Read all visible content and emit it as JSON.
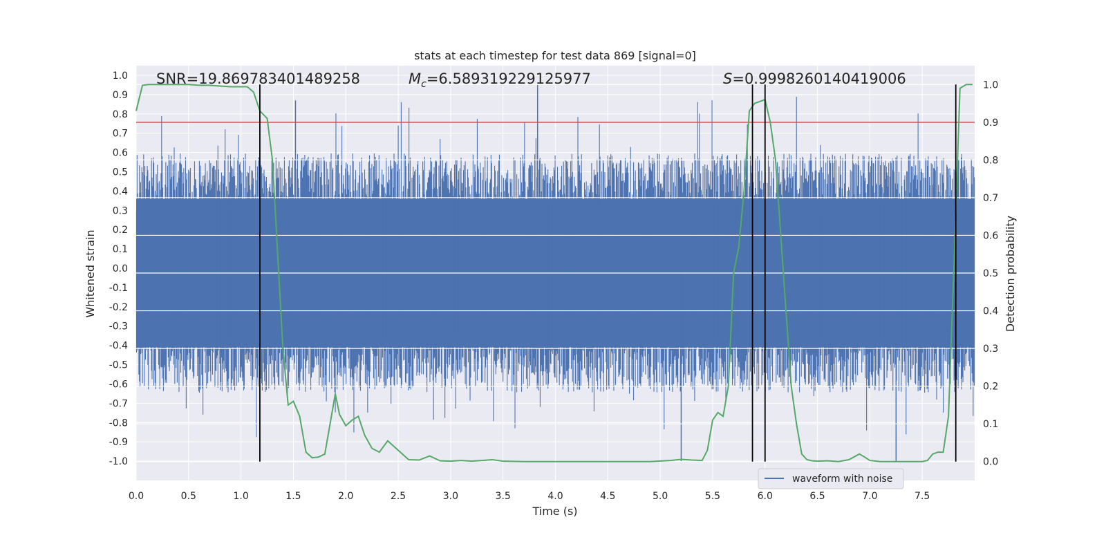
{
  "chart_data": {
    "type": "line",
    "title": "stats at each timestep for test data 869 [signal=0]",
    "xlabel": "Time (s)",
    "ylabel_left": "Whitened strain",
    "ylabel_right": "Detection probability",
    "xlim": [
      0.0,
      8.0
    ],
    "ylim_left": [
      -1.1,
      1.05
    ],
    "ylim_right": [
      -0.05,
      1.05
    ],
    "x_ticks": [
      "0.0",
      "0.5",
      "1.0",
      "1.5",
      "2.0",
      "2.5",
      "3.0",
      "3.5",
      "4.0",
      "4.5",
      "5.0",
      "5.5",
      "6.0",
      "6.5",
      "7.0",
      "7.5"
    ],
    "y_left_ticks": [
      "1.0",
      "0.9",
      "0.8",
      "0.7",
      "0.6",
      "0.5",
      "0.4",
      "0.3",
      "0.2",
      "0.1",
      "0.0",
      "-0.1",
      "-0.2",
      "-0.3",
      "-0.4",
      "-0.5",
      "-0.6",
      "-0.7",
      "-0.8",
      "-0.9",
      "-1.0"
    ],
    "y_right_ticks": [
      "1.0",
      "0.9",
      "0.8",
      "0.7",
      "0.6",
      "0.5",
      "0.4",
      "0.3",
      "0.2",
      "0.1",
      "0.0"
    ],
    "annotations": {
      "snr": "SNR=19.869783401489258",
      "mc_symbol": "M",
      "mc_sub": "c",
      "mc_value": "=6.589319229125977",
      "s_symbol": "S",
      "s_value": "=0.9998260140419006"
    },
    "threshold": {
      "value": 0.9,
      "color": "#c44e52"
    },
    "vertical_markers": [
      1.18,
      5.88,
      6.0,
      7.82
    ],
    "waveform": {
      "name": "waveform with noise",
      "color": "#4c72b0",
      "envelope_upper_typical": 0.4,
      "envelope_lower_typical": -0.45,
      "peak_max": 0.95,
      "peak_min": -1.0
    },
    "probability": {
      "color": "#55a868",
      "x": [
        0.0,
        0.06,
        0.12,
        0.2,
        0.3,
        0.4,
        0.5,
        0.6,
        0.7,
        0.8,
        0.9,
        1.0,
        1.06,
        1.12,
        1.18,
        1.25,
        1.3,
        1.35,
        1.4,
        1.45,
        1.5,
        1.56,
        1.62,
        1.68,
        1.74,
        1.8,
        1.9,
        1.94,
        2.0,
        2.06,
        2.12,
        2.18,
        2.25,
        2.32,
        2.4,
        2.5,
        2.6,
        2.7,
        2.8,
        2.9,
        3.0,
        3.1,
        3.2,
        3.3,
        3.4,
        3.5,
        3.7,
        4.0,
        4.3,
        4.6,
        4.9,
        5.1,
        5.2,
        5.3,
        5.4,
        5.45,
        5.5,
        5.55,
        5.6,
        5.65,
        5.7,
        5.75,
        5.8,
        5.85,
        5.9,
        5.95,
        6.0,
        6.05,
        6.1,
        6.15,
        6.2,
        6.25,
        6.3,
        6.35,
        6.4,
        6.45,
        6.5,
        6.6,
        6.7,
        6.8,
        6.9,
        6.95,
        7.0,
        7.1,
        7.2,
        7.3,
        7.4,
        7.5,
        7.55,
        7.6,
        7.65,
        7.7,
        7.75,
        7.8,
        7.86,
        7.92,
        7.98
      ],
      "values": [
        0.93,
        0.998,
        1.0,
        1.0,
        1.0,
        1.0,
        1.0,
        0.998,
        0.998,
        0.996,
        0.994,
        0.994,
        0.994,
        0.98,
        0.93,
        0.91,
        0.8,
        0.55,
        0.3,
        0.15,
        0.16,
        0.12,
        0.025,
        0.01,
        0.012,
        0.02,
        0.18,
        0.125,
        0.095,
        0.11,
        0.12,
        0.07,
        0.035,
        0.025,
        0.055,
        0.03,
        0.005,
        0.004,
        0.015,
        0.002,
        0.001,
        0.003,
        0.001,
        0.003,
        0.005,
        0.001,
        0.0,
        0.0,
        0.0,
        0.0,
        0.0,
        0.003,
        0.006,
        0.004,
        0.003,
        0.03,
        0.11,
        0.13,
        0.12,
        0.2,
        0.5,
        0.57,
        0.72,
        0.93,
        0.95,
        0.955,
        0.96,
        0.9,
        0.8,
        0.6,
        0.4,
        0.2,
        0.1,
        0.02,
        0.005,
        0.002,
        0.001,
        0.002,
        0.0,
        0.005,
        0.02,
        0.012,
        0.003,
        0.0,
        0.0,
        0.0,
        0.0,
        0.0,
        0.003,
        0.02,
        0.025,
        0.025,
        0.12,
        0.5,
        0.99,
        1.0,
        1.0
      ]
    },
    "legend": {
      "label": "waveform with noise",
      "position": "lower-right"
    }
  }
}
